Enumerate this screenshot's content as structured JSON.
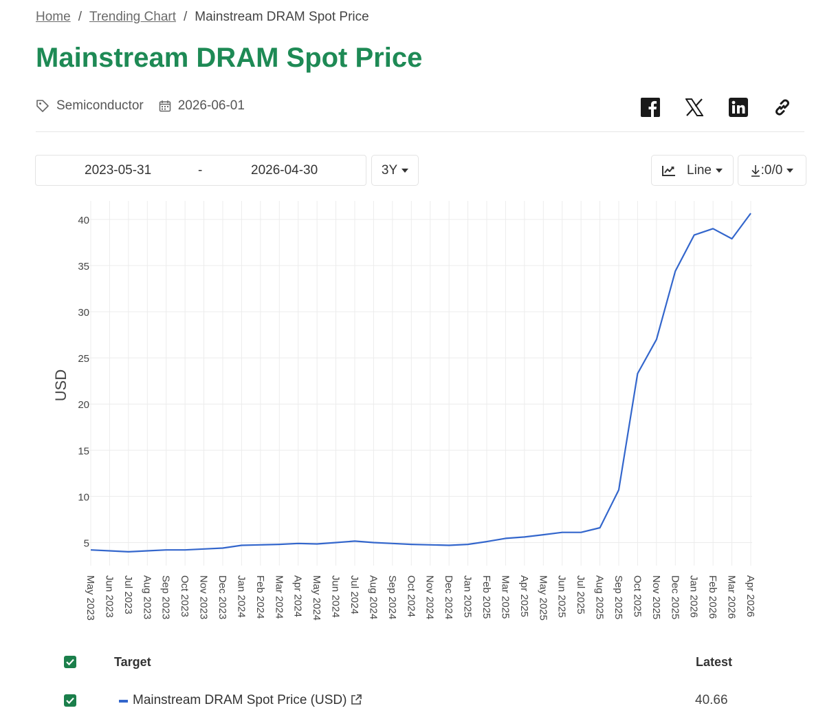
{
  "breadcrumb": {
    "home": "Home",
    "trending": "Trending Chart",
    "current": "Mainstream DRAM Spot Price",
    "sep": "/"
  },
  "page": {
    "title": "Mainstream DRAM Spot Price",
    "category": "Semiconductor",
    "date": "2026-06-01"
  },
  "share": {
    "icons": [
      "facebook-icon",
      "x-icon",
      "linkedin-icon",
      "link-icon"
    ]
  },
  "controls": {
    "start_date": "2023-05-31",
    "dash": "-",
    "end_date": "2026-04-30",
    "range": "3Y",
    "chart_type": "Line",
    "download": ":0/0"
  },
  "table": {
    "header_target": "Target",
    "header_latest": "Latest",
    "rows": [
      {
        "name": "Mainstream DRAM Spot Price (USD)",
        "latest": "40.66",
        "color": "#3366cc"
      }
    ]
  },
  "colors": {
    "accent": "#1e8a55",
    "series": "#3366cc",
    "checkbox": "#1b7f4b"
  },
  "chart_data": {
    "type": "line",
    "ylabel": "USD",
    "xlabel": "",
    "ylim": [
      2.5,
      42
    ],
    "yticks": [
      5,
      10,
      15,
      20,
      25,
      30,
      35,
      40
    ],
    "grid": true,
    "categories": [
      "May 2023",
      "Jun 2023",
      "Jul 2023",
      "Aug 2023",
      "Sep 2023",
      "Oct 2023",
      "Nov 2023",
      "Dec 2023",
      "Jan 2024",
      "Feb 2024",
      "Mar 2024",
      "Apr 2024",
      "May 2024",
      "Jun 2024",
      "Jul 2024",
      "Aug 2024",
      "Sep 2024",
      "Oct 2024",
      "Nov 2024",
      "Dec 2024",
      "Jan 2025",
      "Feb 2025",
      "Mar 2025",
      "Apr 2025",
      "May 2025",
      "Jun 2025",
      "Jul 2025",
      "Aug 2025",
      "Sep 2025",
      "Oct 2025",
      "Nov 2025",
      "Dec 2025",
      "Jan 2026",
      "Feb 2026",
      "Mar 2026",
      "Apr 2026"
    ],
    "series": [
      {
        "name": "Mainstream DRAM Spot Price (USD)",
        "values": [
          4.2,
          4.1,
          4.0,
          4.1,
          4.2,
          4.2,
          4.3,
          4.4,
          4.7,
          4.75,
          4.8,
          4.9,
          4.85,
          5.0,
          5.15,
          5.0,
          4.9,
          4.8,
          4.75,
          4.7,
          4.8,
          5.1,
          5.45,
          5.6,
          5.85,
          6.1,
          6.1,
          6.6,
          10.7,
          23.3,
          27.0,
          34.4,
          38.3,
          39.0,
          37.9,
          40.66
        ]
      }
    ]
  }
}
